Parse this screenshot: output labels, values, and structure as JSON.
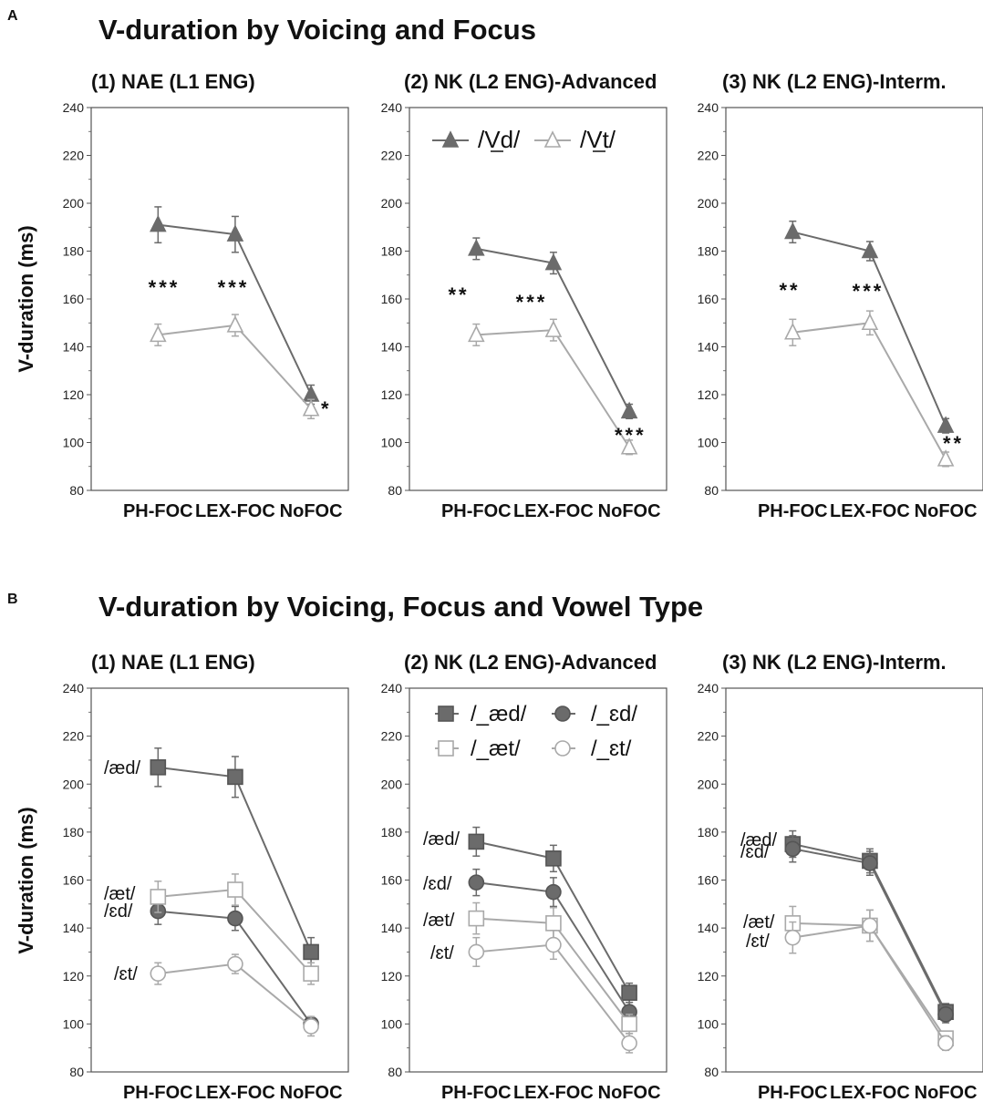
{
  "panels": [
    {
      "letter": "A",
      "title": "V-duration by Voicing and Focus",
      "ylabel": "V-duration (ms)"
    },
    {
      "letter": "B",
      "title": "V-duration by Voicing, Focus and Vowel Type",
      "ylabel": "V-duration (ms)"
    }
  ],
  "colors": {
    "voiced_series": "#6b6b6b",
    "voiceless_series": "#a9a9a9",
    "axis": "#555555",
    "text": "#111111"
  },
  "chart_data": [
    {
      "type": "line",
      "panel": "A",
      "subplot_title": "(1) NAE (L1 ENG)",
      "categories": [
        "PH-FOC",
        "LEX-FOC",
        "NoFOC"
      ],
      "ylim": [
        80,
        240
      ],
      "yticks": [
        80,
        100,
        120,
        140,
        160,
        180,
        200,
        220,
        240
      ],
      "series": [
        {
          "name": "/Vd/",
          "marker": "triangle-filled",
          "values": [
            191,
            187,
            120
          ],
          "err": [
            7.5,
            7.5,
            4
          ]
        },
        {
          "name": "/Vt/",
          "marker": "triangle-open",
          "values": [
            145,
            149,
            114
          ],
          "err": [
            4.5,
            4.5,
            4
          ]
        }
      ],
      "annotations": [
        "***",
        "***",
        "*"
      ]
    },
    {
      "type": "line",
      "panel": "A",
      "subplot_title": "(2) NK (L2 ENG)-Advanced",
      "categories": [
        "PH-FOC",
        "LEX-FOC",
        "NoFOC"
      ],
      "ylim": [
        80,
        240
      ],
      "yticks": [
        80,
        100,
        120,
        140,
        160,
        180,
        200,
        220,
        240
      ],
      "legend_position": "top",
      "series": [
        {
          "name": "/Vd/",
          "marker": "triangle-filled",
          "values": [
            181,
            175,
            113
          ],
          "err": [
            4.5,
            4.5,
            3
          ]
        },
        {
          "name": "/Vt/",
          "marker": "triangle-open",
          "values": [
            145,
            147,
            98
          ],
          "err": [
            4.5,
            4.5,
            3
          ]
        }
      ],
      "annotations": [
        "**",
        "***",
        "***"
      ]
    },
    {
      "type": "line",
      "panel": "A",
      "subplot_title": "(3) NK (L2 ENG)-Interm.",
      "categories": [
        "PH-FOC",
        "LEX-FOC",
        "NoFOC"
      ],
      "ylim": [
        80,
        240
      ],
      "yticks": [
        80,
        100,
        120,
        140,
        160,
        180,
        200,
        220,
        240
      ],
      "series": [
        {
          "name": "/Vd/",
          "marker": "triangle-filled",
          "values": [
            188,
            180,
            107
          ],
          "err": [
            4.5,
            4,
            3
          ]
        },
        {
          "name": "/Vt/",
          "marker": "triangle-open",
          "values": [
            146,
            150,
            93
          ],
          "err": [
            5.5,
            5,
            3
          ]
        }
      ],
      "annotations": [
        "**",
        "***",
        "**"
      ]
    },
    {
      "type": "line",
      "panel": "B",
      "subplot_title": "(1) NAE (L1 ENG)",
      "categories": [
        "PH-FOC",
        "LEX-FOC",
        "NoFOC"
      ],
      "ylim": [
        80,
        240
      ],
      "yticks": [
        80,
        100,
        120,
        140,
        160,
        180,
        200,
        220,
        240
      ],
      "series": [
        {
          "name": "/_æd/",
          "marker": "square-filled",
          "label": "/æd/",
          "values": [
            207,
            203,
            130
          ],
          "err": [
            8,
            8.5,
            6
          ]
        },
        {
          "name": "/_ɛd/",
          "marker": "circle-filled",
          "label": "/ɛd/",
          "values": [
            147,
            144,
            100
          ],
          "err": [
            5.5,
            5,
            3
          ]
        },
        {
          "name": "/_æt/",
          "marker": "square-open",
          "label": "/æt/",
          "values": [
            153,
            156,
            121
          ],
          "err": [
            6.5,
            6.5,
            4.5
          ]
        },
        {
          "name": "/_ɛt/",
          "marker": "circle-open",
          "label": "/ɛt/",
          "values": [
            121,
            125,
            99
          ],
          "err": [
            4.5,
            4,
            4
          ]
        }
      ]
    },
    {
      "type": "line",
      "panel": "B",
      "subplot_title": "(2) NK (L2 ENG)-Advanced",
      "categories": [
        "PH-FOC",
        "LEX-FOC",
        "NoFOC"
      ],
      "ylim": [
        80,
        240
      ],
      "yticks": [
        80,
        100,
        120,
        140,
        160,
        180,
        200,
        220,
        240
      ],
      "legend_position": "top",
      "series": [
        {
          "name": "/_æd/",
          "marker": "square-filled",
          "label": "/æd/",
          "values": [
            176,
            169,
            113
          ],
          "err": [
            6,
            5.5,
            4
          ]
        },
        {
          "name": "/_ɛd/",
          "marker": "circle-filled",
          "label": "/ɛd/",
          "values": [
            159,
            155,
            105
          ],
          "err": [
            5.5,
            6,
            4
          ]
        },
        {
          "name": "/_æt/",
          "marker": "square-open",
          "label": "/æt/",
          "values": [
            144,
            142,
            100
          ],
          "err": [
            6.5,
            6.5,
            4
          ]
        },
        {
          "name": "/_ɛt/",
          "marker": "circle-open",
          "label": "/ɛt/",
          "values": [
            130,
            133,
            92
          ],
          "err": [
            6,
            6,
            4
          ]
        }
      ]
    },
    {
      "type": "line",
      "panel": "B",
      "subplot_title": "(3) NK (L2 ENG)-Interm.",
      "categories": [
        "PH-FOC",
        "LEX-FOC",
        "NoFOC"
      ],
      "ylim": [
        80,
        240
      ],
      "yticks": [
        80,
        100,
        120,
        140,
        160,
        180,
        200,
        220,
        240
      ],
      "series": [
        {
          "name": "/_æd/",
          "marker": "square-filled",
          "label": "/æd/",
          "values": [
            175,
            168,
            105
          ],
          "err": [
            5.5,
            5,
            3.5
          ]
        },
        {
          "name": "/_ɛd/",
          "marker": "circle-filled",
          "label": "/ɛd/",
          "values": [
            173,
            167,
            104
          ],
          "err": [
            5.5,
            5,
            3.5
          ]
        },
        {
          "name": "/_æt/",
          "marker": "square-open",
          "label": "/æt/",
          "values": [
            142,
            141,
            94
          ],
          "err": [
            7,
            6.5,
            3
          ]
        },
        {
          "name": "/_ɛt/",
          "marker": "circle-open",
          "label": "/ɛt/",
          "values": [
            136,
            141,
            92
          ],
          "err": [
            6.5,
            6.5,
            3
          ]
        }
      ]
    }
  ]
}
